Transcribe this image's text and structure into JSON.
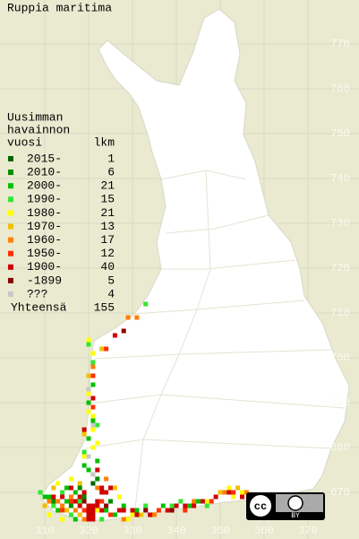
{
  "title": "Ruppia maritima",
  "legend": {
    "header": [
      "Uusimman",
      "havainnon",
      "vuosi"
    ],
    "count_header": "lkm",
    "entries": [
      {
        "label": "2015-",
        "count": 1,
        "color": "#006400",
        "squares": [
          [
            321,
            672
          ]
        ]
      },
      {
        "label": "2010-",
        "count": 6,
        "color": "#008c00",
        "squares": [
          [
            319,
            669
          ],
          [
            322,
            673
          ],
          [
            312,
            668
          ],
          [
            316,
            667
          ],
          [
            325,
            668
          ],
          [
            318,
            671
          ]
        ]
      },
      {
        "label": "2000-",
        "count": 21,
        "color": "#00c000",
        "squares": [
          [
            320,
            690
          ],
          [
            321,
            686
          ],
          [
            320,
            682
          ],
          [
            322,
            677
          ],
          [
            320,
            675
          ],
          [
            311,
            669
          ],
          [
            313,
            666
          ],
          [
            315,
            668
          ],
          [
            317,
            664
          ],
          [
            324,
            666
          ],
          [
            326,
            665
          ],
          [
            331,
            666
          ],
          [
            337,
            667
          ],
          [
            343,
            667
          ],
          [
            345,
            668
          ],
          [
            315,
            671
          ],
          [
            310,
            669
          ],
          [
            319,
            676
          ],
          [
            321,
            694
          ],
          [
            317,
            670
          ],
          [
            328,
            667
          ]
        ]
      },
      {
        "label": "1990-",
        "count": 15,
        "color": "#33e633",
        "squares": [
          [
            333,
            712
          ],
          [
            320,
            703
          ],
          [
            321,
            699
          ],
          [
            319,
            679
          ],
          [
            323,
            664
          ],
          [
            314,
            670
          ],
          [
            312,
            667
          ],
          [
            316,
            665
          ],
          [
            333,
            667
          ],
          [
            339,
            667
          ],
          [
            341,
            668
          ],
          [
            309,
            670
          ],
          [
            322,
            685
          ],
          [
            318,
            668
          ],
          [
            347,
            667
          ]
        ]
      },
      {
        "label": "1980-",
        "count": 21,
        "color": "#ffff00",
        "squares": [
          [
            320,
            704
          ],
          [
            321,
            701
          ],
          [
            321,
            687
          ],
          [
            321,
            684
          ],
          [
            321,
            680
          ],
          [
            320,
            688
          ],
          [
            322,
            681
          ],
          [
            319,
            678
          ],
          [
            311,
            665
          ],
          [
            314,
            664
          ],
          [
            330,
            665
          ],
          [
            329,
            664
          ],
          [
            352,
            671
          ],
          [
            355,
            670
          ],
          [
            353,
            669
          ],
          [
            347,
            668
          ],
          [
            316,
            673
          ],
          [
            320,
            692
          ],
          [
            322,
            666
          ],
          [
            313,
            672
          ],
          [
            327,
            669
          ]
        ]
      },
      {
        "label": "1970-",
        "count": 13,
        "color": "#f0c000",
        "squares": [
          [
            323,
            702
          ],
          [
            320,
            696
          ],
          [
            319,
            683
          ],
          [
            315,
            666
          ],
          [
            310,
            667
          ],
          [
            318,
            672
          ],
          [
            332,
            665
          ],
          [
            354,
            671
          ],
          [
            350,
            670
          ],
          [
            318,
            665
          ],
          [
            312,
            671
          ],
          [
            326,
            671
          ],
          [
            321,
            674
          ]
        ]
      },
      {
        "label": "1960-",
        "count": 17,
        "color": "#ff7f00",
        "squares": [
          [
            329,
            709
          ],
          [
            331,
            709
          ],
          [
            321,
            698
          ],
          [
            320,
            693
          ],
          [
            313,
            668
          ],
          [
            311,
            668
          ],
          [
            317,
            666
          ],
          [
            319,
            664
          ],
          [
            335,
            665
          ],
          [
            344,
            668
          ],
          [
            356,
            670
          ],
          [
            351,
            670
          ],
          [
            322,
            671
          ],
          [
            324,
            673
          ],
          [
            314,
            667
          ],
          [
            316,
            669
          ],
          [
            328,
            664
          ]
        ]
      },
      {
        "label": "1950-",
        "count": 12,
        "color": "#ff3000",
        "squares": [
          [
            324,
            702
          ],
          [
            321,
            689
          ],
          [
            316,
            668
          ],
          [
            319,
            666
          ],
          [
            323,
            668
          ],
          [
            336,
            666
          ],
          [
            342,
            666
          ],
          [
            348,
            668
          ],
          [
            353,
            670
          ],
          [
            314,
            666
          ],
          [
            325,
            665
          ],
          [
            321,
            696
          ]
        ]
      },
      {
        "label": "1900-",
        "count": 40,
        "color": "#d00000",
        "squares": [
          [
            326,
            705
          ],
          [
            320,
            667
          ],
          [
            321,
            667
          ],
          [
            320,
            666
          ],
          [
            321,
            666
          ],
          [
            320,
            665
          ],
          [
            321,
            665
          ],
          [
            320,
            664
          ],
          [
            321,
            664
          ],
          [
            322,
            668
          ],
          [
            322,
            667
          ],
          [
            319,
            670
          ],
          [
            318,
            667
          ],
          [
            317,
            668
          ],
          [
            323,
            670
          ],
          [
            323,
            671
          ],
          [
            325,
            671
          ],
          [
            324,
            670
          ],
          [
            322,
            675
          ],
          [
            320,
            678
          ],
          [
            321,
            691
          ],
          [
            319,
            684
          ],
          [
            327,
            666
          ],
          [
            328,
            666
          ],
          [
            330,
            666
          ],
          [
            331,
            665
          ],
          [
            334,
            665
          ],
          [
            338,
            666
          ],
          [
            340,
            667
          ],
          [
            342,
            667
          ],
          [
            344,
            667
          ],
          [
            346,
            668
          ],
          [
            349,
            669
          ],
          [
            352,
            670
          ],
          [
            355,
            669
          ],
          [
            312,
            669
          ],
          [
            314,
            669
          ],
          [
            316,
            671
          ],
          [
            318,
            669
          ],
          [
            323,
            666
          ]
        ]
      },
      {
        "label": "-1899",
        "count": 5,
        "color": "#8c0000",
        "squares": [
          [
            328,
            706
          ],
          [
            319,
            668
          ],
          [
            324,
            667
          ],
          [
            333,
            666
          ],
          [
            339,
            666
          ]
        ]
      },
      {
        "label": "???",
        "count": 4,
        "color": "#c8c8c8",
        "squares": [
          [
            320,
            693
          ],
          [
            321,
            685
          ],
          [
            320,
            678
          ],
          [
            321,
            674
          ]
        ]
      }
    ]
  },
  "total_label": "Yhteensä",
  "total": 155,
  "grid": {
    "easting": [
      310,
      320,
      330,
      340,
      350,
      360,
      370
    ],
    "northing": [
      670,
      680,
      690,
      700,
      710,
      720,
      730,
      740,
      750,
      760,
      770
    ]
  },
  "badge": {
    "logo": "cc",
    "label": "BY"
  }
}
